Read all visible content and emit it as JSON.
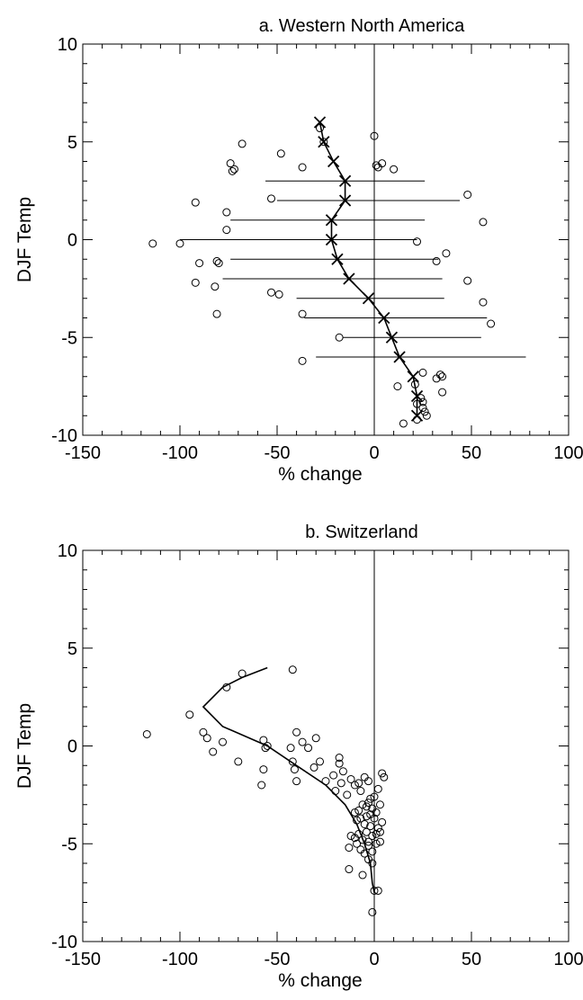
{
  "figure": {
    "panels": [
      {
        "id": "a",
        "title": "a. Western North America"
      },
      {
        "id": "b",
        "title": "b. Switzerland"
      }
    ]
  },
  "chart_data": [
    {
      "type": "scatter",
      "title": "a. Western North America",
      "xlabel": "% change",
      "ylabel": "DJF Temp",
      "xlim": [
        -150,
        100
      ],
      "ylim": [
        -10,
        10
      ],
      "xticks": [
        -150,
        -100,
        -50,
        0,
        50,
        100
      ],
      "yticks": [
        -10,
        -5,
        0,
        5,
        10
      ],
      "zero_line": 0,
      "points": [
        [
          -28,
          5.7
        ],
        [
          -68,
          4.9
        ],
        [
          -48,
          4.4
        ],
        [
          -26,
          5.0
        ],
        [
          0,
          5.3
        ],
        [
          -74,
          3.9
        ],
        [
          -73,
          3.5
        ],
        [
          -72,
          3.6
        ],
        [
          -37,
          3.7
        ],
        [
          1,
          3.8
        ],
        [
          2,
          3.7
        ],
        [
          4,
          3.9
        ],
        [
          10,
          3.6
        ],
        [
          -92,
          1.9
        ],
        [
          -53,
          2.1
        ],
        [
          48,
          2.3
        ],
        [
          -76,
          1.4
        ],
        [
          56,
          0.9
        ],
        [
          -76,
          0.5
        ],
        [
          -114,
          -0.2
        ],
        [
          -100,
          -0.2
        ],
        [
          22,
          -0.1
        ],
        [
          37,
          -0.7
        ],
        [
          -90,
          -1.2
        ],
        [
          -81,
          -1.1
        ],
        [
          -80,
          -1.2
        ],
        [
          32,
          -1.1
        ],
        [
          -92,
          -2.2
        ],
        [
          -82,
          -2.4
        ],
        [
          48,
          -2.1
        ],
        [
          -53,
          -2.7
        ],
        [
          -49,
          -2.8
        ],
        [
          56,
          -3.2
        ],
        [
          -37,
          -3.8
        ],
        [
          -81,
          -3.8
        ],
        [
          60,
          -4.3
        ],
        [
          -18,
          -5.0
        ],
        [
          -37,
          -6.2
        ],
        [
          25,
          -6.8
        ],
        [
          34,
          -6.9
        ],
        [
          35,
          -7.0
        ],
        [
          32,
          -7.1
        ],
        [
          12,
          -7.5
        ],
        [
          21,
          -7.4
        ],
        [
          35,
          -7.8
        ],
        [
          24,
          -8.1
        ],
        [
          22,
          -8.4
        ],
        [
          25,
          -8.3
        ],
        [
          25,
          -8.6
        ],
        [
          26,
          -8.8
        ],
        [
          27,
          -9.0
        ],
        [
          15,
          -9.4
        ],
        [
          22,
          -9.2
        ]
      ],
      "series": [
        {
          "marker": "x",
          "x": [
            -28,
            -26,
            -21,
            -15,
            -15,
            -22,
            -22,
            -19,
            -13,
            -3,
            5,
            9,
            13,
            20,
            22,
            22
          ],
          "y": [
            6,
            5,
            4,
            3,
            2,
            1,
            0,
            -1,
            -2,
            -3,
            -4,
            -5,
            -6,
            -7,
            -8,
            -9
          ]
        }
      ],
      "ranges": [
        {
          "y": 3,
          "x_min": -56,
          "x_max": 26
        },
        {
          "y": 2,
          "x_min": -50,
          "x_max": 44
        },
        {
          "y": 1,
          "x_min": -74,
          "x_max": 26
        },
        {
          "y": 0,
          "x_min": -100,
          "x_max": 22
        },
        {
          "y": -1,
          "x_min": -74,
          "x_max": 33
        },
        {
          "y": -2,
          "x_min": -78,
          "x_max": 35
        },
        {
          "y": -3,
          "x_min": -40,
          "x_max": 36
        },
        {
          "y": -4,
          "x_min": -36,
          "x_max": 58
        },
        {
          "y": -5,
          "x_min": -16,
          "x_max": 55
        },
        {
          "y": -6,
          "x_min": -30,
          "x_max": 78
        }
      ]
    },
    {
      "type": "scatter",
      "title": "b. Switzerland",
      "xlabel": "% change",
      "ylabel": "DJF Temp",
      "xlim": [
        -150,
        100
      ],
      "ylim": [
        -10,
        10
      ],
      "xticks": [
        -150,
        -100,
        -50,
        0,
        50,
        100
      ],
      "yticks": [
        -10,
        -5,
        0,
        5,
        10
      ],
      "zero_line": 0,
      "points": [
        [
          -117,
          0.6
        ],
        [
          -95,
          1.6
        ],
        [
          -76,
          3.0
        ],
        [
          -68,
          3.7
        ],
        [
          -42,
          3.9
        ],
        [
          -88,
          0.7
        ],
        [
          -86,
          0.4
        ],
        [
          -83,
          -0.3
        ],
        [
          -78,
          0.2
        ],
        [
          -70,
          -0.8
        ],
        [
          -57,
          0.3
        ],
        [
          -55,
          0.0
        ],
        [
          -56,
          -0.1
        ],
        [
          -43,
          -0.1
        ],
        [
          -40,
          0.7
        ],
        [
          -37,
          0.2
        ],
        [
          -34,
          -0.1
        ],
        [
          -30,
          0.4
        ],
        [
          -57,
          -1.2
        ],
        [
          -58,
          -2.0
        ],
        [
          -41,
          -1.2
        ],
        [
          -42,
          -0.8
        ],
        [
          -40,
          -1.8
        ],
        [
          -31,
          -1.1
        ],
        [
          -28,
          -0.8
        ],
        [
          -25,
          -1.8
        ],
        [
          -21,
          -1.5
        ],
        [
          -20,
          -2.3
        ],
        [
          -18,
          -0.9
        ],
        [
          -18,
          -0.6
        ],
        [
          -17,
          -1.9
        ],
        [
          -16,
          -1.3
        ],
        [
          -14,
          -2.5
        ],
        [
          -12,
          -1.7
        ],
        [
          -10,
          -2.0
        ],
        [
          -8,
          -1.9
        ],
        [
          -7,
          -2.3
        ],
        [
          -5,
          -1.6
        ],
        [
          -3,
          -1.8
        ],
        [
          -2,
          -2.7
        ],
        [
          0,
          -2.6
        ],
        [
          2,
          -2.2
        ],
        [
          4,
          -1.4
        ],
        [
          5,
          -1.6
        ],
        [
          -10,
          -3.4
        ],
        [
          -8,
          -3.3
        ],
        [
          -6,
          -3.0
        ],
        [
          -4,
          -3.1
        ],
        [
          -3,
          -2.9
        ],
        [
          -2,
          -3.5
        ],
        [
          -1,
          -3.2
        ],
        [
          1,
          -3.4
        ],
        [
          3,
          -3.0
        ],
        [
          -9,
          -3.8
        ],
        [
          -7,
          -3.7
        ],
        [
          -5,
          -4.0
        ],
        [
          -4,
          -3.6
        ],
        [
          -2,
          -4.1
        ],
        [
          0,
          -3.7
        ],
        [
          2,
          -4.2
        ],
        [
          4,
          -3.9
        ],
        [
          -12,
          -4.6
        ],
        [
          -10,
          -4.7
        ],
        [
          -8,
          -4.5
        ],
        [
          -6,
          -4.8
        ],
        [
          -4,
          -4.4
        ],
        [
          -3,
          -4.9
        ],
        [
          -1,
          -4.6
        ],
        [
          1,
          -4.5
        ],
        [
          3,
          -4.4
        ],
        [
          -13,
          -5.2
        ],
        [
          -9,
          -5.0
        ],
        [
          -7,
          -5.3
        ],
        [
          -5,
          -5.5
        ],
        [
          -3,
          -5.1
        ],
        [
          -1,
          -5.4
        ],
        [
          1,
          -5.0
        ],
        [
          3,
          -4.9
        ],
        [
          -13,
          -6.3
        ],
        [
          -6,
          -6.6
        ],
        [
          -3,
          -5.8
        ],
        [
          -1,
          -6.0
        ],
        [
          0,
          -7.4
        ],
        [
          2,
          -7.4
        ],
        [
          -1,
          -8.5
        ]
      ],
      "series": [
        {
          "marker": "none",
          "x": [
            -55,
            -68,
            -78,
            -88,
            -78,
            -55,
            -40,
            -25,
            -15,
            -9,
            -5,
            -2,
            -1,
            0
          ],
          "y": [
            4,
            3.5,
            3,
            2,
            1,
            0,
            -1,
            -2,
            -3,
            -4,
            -5,
            -6,
            -7,
            -7.5
          ]
        }
      ]
    }
  ]
}
